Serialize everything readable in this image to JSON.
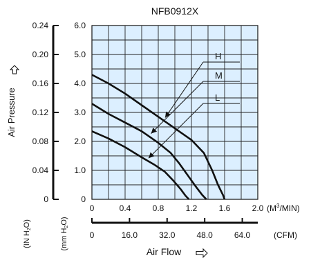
{
  "chart_data": {
    "type": "line",
    "title": "NFB0912X",
    "xlabel": "Air Flow",
    "ylabel": "Air Pressure",
    "x_unit_primary": "(M³/MIN)",
    "x_unit_secondary": "(CFM)",
    "y_unit_inh2o": "(IN H2O)",
    "y_unit_mmh2o": "(mm H2O)",
    "xlim": [
      0,
      2.0
    ],
    "ylim": [
      0,
      6.0
    ],
    "grid": true,
    "x_ticks_m3min": [
      "0",
      "0.4",
      "0.8",
      "1.2",
      "1.6",
      "2.0"
    ],
    "x_ticks_cfm": [
      "0",
      "16.0",
      "32.0",
      "48.0",
      "64.0"
    ],
    "y_ticks_mmh2o": [
      "0",
      "1.0",
      "2.0",
      "3.0",
      "4.0",
      "5.0",
      "6.0"
    ],
    "y_ticks_inh2o": [
      "0",
      "0.04",
      "0.08",
      "0.12",
      "0.16",
      "0.20",
      "0.24"
    ],
    "series": [
      {
        "name": "H",
        "x": [
          0,
          0.2,
          0.4,
          0.6,
          0.8,
          1.0,
          1.2,
          1.35,
          1.45,
          1.52,
          1.58,
          1.6
        ],
        "y": [
          4.3,
          4.0,
          3.65,
          3.25,
          2.85,
          2.45,
          2.05,
          1.6,
          1.0,
          0.5,
          0.15,
          0
        ]
      },
      {
        "name": "M",
        "x": [
          0,
          0.2,
          0.4,
          0.6,
          0.8,
          0.95,
          1.05,
          1.15,
          1.25,
          1.33,
          1.38
        ],
        "y": [
          3.3,
          2.95,
          2.65,
          2.35,
          1.95,
          1.6,
          1.25,
          0.85,
          0.45,
          0.15,
          0
        ]
      },
      {
        "name": "L",
        "x": [
          0,
          0.2,
          0.4,
          0.6,
          0.75,
          0.88,
          0.98,
          1.07,
          1.13,
          1.17
        ],
        "y": [
          2.35,
          2.1,
          1.8,
          1.45,
          1.2,
          0.95,
          0.65,
          0.35,
          0.12,
          0
        ]
      }
    ],
    "labels": {
      "H": "H",
      "M": "M",
      "L": "L"
    }
  },
  "colors": {
    "plot_bg": "#dcefff",
    "grid": "#222222",
    "curve": "#111111"
  }
}
